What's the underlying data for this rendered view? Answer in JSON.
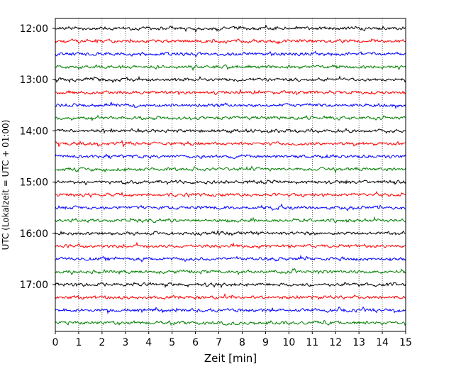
{
  "chart_data": {
    "type": "line",
    "title": "",
    "xlabel": "Zeit  [min]",
    "ylabel": "UTC (Lokalzeit = UTC + 01:00)",
    "xlim": [
      0,
      15
    ],
    "x_ticks": [
      "0",
      "1",
      "2",
      "3",
      "4",
      "5",
      "6",
      "7",
      "8",
      "9",
      "10",
      "11",
      "12",
      "13",
      "14",
      "15"
    ],
    "y_ticks": [
      "12:00",
      "13:00",
      "14:00",
      "15:00",
      "16:00",
      "17:00"
    ],
    "trace_interval_min": 15,
    "trace_start": "12:00",
    "trace_count": 24,
    "trace_colors": [
      "#000000",
      "#ff0000",
      "#0000ff",
      "#008000"
    ],
    "grid": "vertical dotted lines at each minute"
  }
}
